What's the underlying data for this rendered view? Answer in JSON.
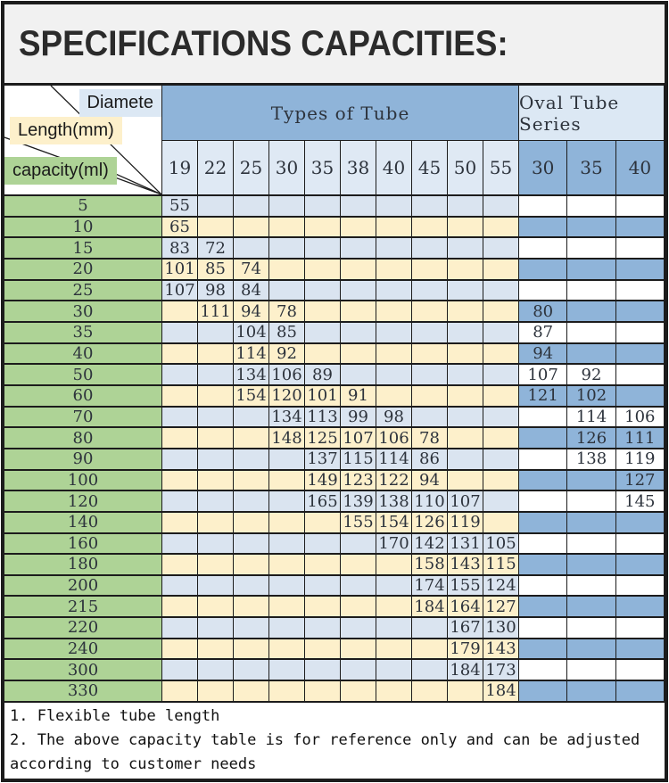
{
  "title": "SPECIFICATIONS CAPACITIES:",
  "corner": {
    "diameter_label": "Diamete",
    "length_label": "Length(mm)",
    "capacity_label": "capacity(ml)"
  },
  "table": {
    "group_headers": {
      "types_of_tube": "Types of Tube",
      "oval_tube_series": "Oval Tube Series"
    },
    "tube_diameter_columns": [
      "19",
      "22",
      "25",
      "30",
      "35",
      "38",
      "40",
      "45",
      "50",
      "55"
    ],
    "oval_diameter_columns": [
      "30",
      "35",
      "40"
    ],
    "rows": [
      {
        "capacity": "5",
        "tube": [
          "55",
          "",
          "",
          "",
          "",
          "",
          "",
          "",
          "",
          ""
        ],
        "oval": [
          "",
          "",
          ""
        ]
      },
      {
        "capacity": "10",
        "tube": [
          "65",
          "",
          "",
          "",
          "",
          "",
          "",
          "",
          "",
          ""
        ],
        "oval": [
          "",
          "",
          ""
        ]
      },
      {
        "capacity": "15",
        "tube": [
          "83",
          "72",
          "",
          "",
          "",
          "",
          "",
          "",
          "",
          ""
        ],
        "oval": [
          "",
          "",
          ""
        ]
      },
      {
        "capacity": "20",
        "tube": [
          "101",
          "85",
          "74",
          "",
          "",
          "",
          "",
          "",
          "",
          ""
        ],
        "oval": [
          "",
          "",
          ""
        ]
      },
      {
        "capacity": "25",
        "tube": [
          "107",
          "98",
          "84",
          "",
          "",
          "",
          "",
          "",
          "",
          ""
        ],
        "oval": [
          "",
          "",
          ""
        ]
      },
      {
        "capacity": "30",
        "tube": [
          "",
          "111",
          "94",
          "78",
          "",
          "",
          "",
          "",
          "",
          ""
        ],
        "oval": [
          "80",
          "",
          ""
        ]
      },
      {
        "capacity": "35",
        "tube": [
          "",
          "",
          "104",
          "85",
          "",
          "",
          "",
          "",
          "",
          ""
        ],
        "oval": [
          "87",
          "",
          ""
        ]
      },
      {
        "capacity": "40",
        "tube": [
          "",
          "",
          "114",
          "92",
          "",
          "",
          "",
          "",
          "",
          ""
        ],
        "oval": [
          "94",
          "",
          ""
        ]
      },
      {
        "capacity": "50",
        "tube": [
          "",
          "",
          "134",
          "106",
          "89",
          "",
          "",
          "",
          "",
          ""
        ],
        "oval": [
          "107",
          "92",
          ""
        ]
      },
      {
        "capacity": "60",
        "tube": [
          "",
          "",
          "154",
          "120",
          "101",
          "91",
          "",
          "",
          "",
          ""
        ],
        "oval": [
          "121",
          "102",
          ""
        ]
      },
      {
        "capacity": "70",
        "tube": [
          "",
          "",
          "",
          "134",
          "113",
          "99",
          "98",
          "",
          "",
          ""
        ],
        "oval": [
          "",
          "114",
          "106"
        ]
      },
      {
        "capacity": "80",
        "tube": [
          "",
          "",
          "",
          "148",
          "125",
          "107",
          "106",
          "78",
          "",
          ""
        ],
        "oval": [
          "",
          "126",
          "111"
        ]
      },
      {
        "capacity": "90",
        "tube": [
          "",
          "",
          "",
          "",
          "137",
          "115",
          "114",
          "86",
          "",
          ""
        ],
        "oval": [
          "",
          "138",
          "119"
        ]
      },
      {
        "capacity": "100",
        "tube": [
          "",
          "",
          "",
          "",
          "149",
          "123",
          "122",
          "94",
          "",
          ""
        ],
        "oval": [
          "",
          "",
          "127"
        ]
      },
      {
        "capacity": "120",
        "tube": [
          "",
          "",
          "",
          "",
          "165",
          "139",
          "138",
          "110",
          "107",
          ""
        ],
        "oval": [
          "",
          "",
          "145"
        ]
      },
      {
        "capacity": "140",
        "tube": [
          "",
          "",
          "",
          "",
          "",
          "155",
          "154",
          "126",
          "119",
          ""
        ],
        "oval": [
          "",
          "",
          ""
        ]
      },
      {
        "capacity": "160",
        "tube": [
          "",
          "",
          "",
          "",
          "",
          "",
          "170",
          "142",
          "131",
          "105"
        ],
        "oval": [
          "",
          "",
          ""
        ]
      },
      {
        "capacity": "180",
        "tube": [
          "",
          "",
          "",
          "",
          "",
          "",
          "",
          "158",
          "143",
          "115"
        ],
        "oval": [
          "",
          "",
          ""
        ]
      },
      {
        "capacity": "200",
        "tube": [
          "",
          "",
          "",
          "",
          "",
          "",
          "",
          "174",
          "155",
          "124"
        ],
        "oval": [
          "",
          "",
          ""
        ]
      },
      {
        "capacity": "215",
        "tube": [
          "",
          "",
          "",
          "",
          "",
          "",
          "",
          "184",
          "164",
          "127"
        ],
        "oval": [
          "",
          "",
          ""
        ]
      },
      {
        "capacity": "220",
        "tube": [
          "",
          "",
          "",
          "",
          "",
          "",
          "",
          "",
          "167",
          "130"
        ],
        "oval": [
          "",
          "",
          ""
        ]
      },
      {
        "capacity": "240",
        "tube": [
          "",
          "",
          "",
          "",
          "",
          "",
          "",
          "",
          "179",
          "143"
        ],
        "oval": [
          "",
          "",
          ""
        ]
      },
      {
        "capacity": "300",
        "tube": [
          "",
          "",
          "",
          "",
          "",
          "",
          "",
          "",
          "184",
          "173"
        ],
        "oval": [
          "",
          "",
          ""
        ]
      },
      {
        "capacity": "330",
        "tube": [
          "",
          "",
          "",
          "",
          "",
          "",
          "",
          "",
          "",
          "184"
        ],
        "oval": [
          "",
          "",
          ""
        ]
      }
    ]
  },
  "notes": [
    "1. Flexible tube length",
    "2. The above capacity table is for reference only and can be adjusted according to customer needs"
  ],
  "colors": {
    "grid": "#1c1c1c",
    "title_bg": "#f1f1f1",
    "header_blue": "#8fb4d9",
    "header_light_blue": "#dce8f4",
    "subheader_blue": "#dfe9f4",
    "cell_blue": "#dae4f0",
    "cell_yellow": "#fdf0cb",
    "label_green": "#aed396"
  }
}
